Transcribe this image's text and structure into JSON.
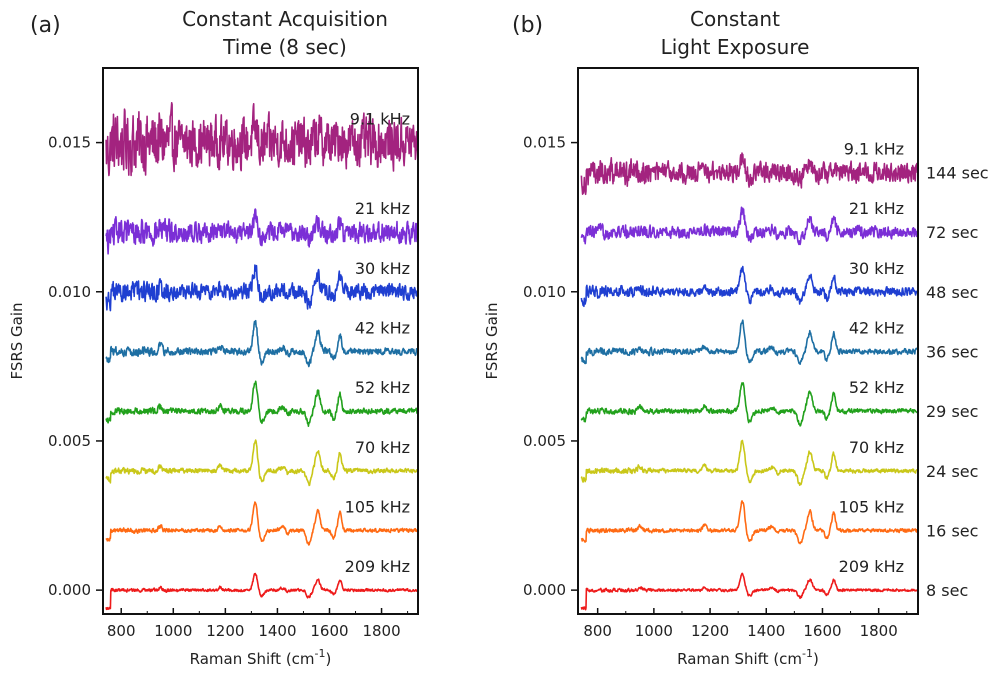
{
  "chart_data": [
    {
      "type": "line",
      "panel_label": "(a)",
      "title_lines": [
        "Constant Acquisition",
        "Time (8 sec)"
      ],
      "xlabel": "Raman Shift (cm",
      "xlabel_sup": "-1",
      "xlabel_end": ")",
      "ylabel": "FSRS Gain",
      "xlim": [
        730,
        1940
      ],
      "ylim": [
        -0.0008,
        0.0175
      ],
      "xticks": [
        800,
        1000,
        1200,
        1400,
        1600,
        1800
      ],
      "yticks": [
        0.0,
        0.005,
        0.01,
        0.015
      ],
      "ytick_labels": [
        "0.000",
        "0.005",
        "0.010",
        "0.015"
      ],
      "grid": false,
      "series": [
        {
          "name": "9.1 kHz",
          "offset": 0.015,
          "noise": 0.0011,
          "peak_scale": 0.4,
          "color": "#a3237f"
        },
        {
          "name": "21 kHz",
          "offset": 0.012,
          "noise": 0.00045,
          "peak_scale": 0.6,
          "color": "#7b2fd6"
        },
        {
          "name": "30 kHz",
          "offset": 0.01,
          "noise": 0.00035,
          "peak_scale": 0.8,
          "color": "#1f3fd1"
        },
        {
          "name": "42 kHz",
          "offset": 0.008,
          "noise": 0.00015,
          "peak_scale": 1.0,
          "color": "#1e6fa3"
        },
        {
          "name": "52 kHz",
          "offset": 0.006,
          "noise": 0.00012,
          "peak_scale": 1.0,
          "color": "#22a11c"
        },
        {
          "name": "70 kHz",
          "offset": 0.004,
          "noise": 0.0001,
          "peak_scale": 1.0,
          "color": "#c9c719"
        },
        {
          "name": "105 kHz",
          "offset": 0.002,
          "noise": 8e-05,
          "peak_scale": 1.0,
          "color": "#ff6a13"
        },
        {
          "name": "209 kHz",
          "offset": 0.0,
          "noise": 6e-05,
          "peak_scale": 0.55,
          "color": "#ee1b1b"
        }
      ]
    },
    {
      "type": "line",
      "panel_label": "(b)",
      "title_lines": [
        "Constant",
        "Light Exposure"
      ],
      "xlabel": "Raman Shift (cm",
      "xlabel_sup": "-1",
      "xlabel_end": ")",
      "ylabel": "FSRS Gain",
      "xlim": [
        730,
        1940
      ],
      "ylim": [
        -0.0008,
        0.0175
      ],
      "xticks": [
        800,
        1000,
        1200,
        1400,
        1600,
        1800
      ],
      "yticks": [
        0.0,
        0.005,
        0.01,
        0.015
      ],
      "ytick_labels": [
        "0.000",
        "0.005",
        "0.010",
        "0.015"
      ],
      "grid": false,
      "series": [
        {
          "name": "9.1 kHz",
          "time": "144 sec",
          "offset": 0.014,
          "noise": 0.00045,
          "peak_scale": 0.5,
          "color": "#a3237f"
        },
        {
          "name": "21 kHz",
          "time": "72 sec",
          "offset": 0.012,
          "noise": 0.00025,
          "peak_scale": 0.7,
          "color": "#7b2fd6"
        },
        {
          "name": "30 kHz",
          "time": "48 sec",
          "offset": 0.01,
          "noise": 0.0002,
          "peak_scale": 0.8,
          "color": "#1f3fd1"
        },
        {
          "name": "42 kHz",
          "time": "36 sec",
          "offset": 0.008,
          "noise": 0.00012,
          "peak_scale": 1.0,
          "color": "#1e6fa3"
        },
        {
          "name": "52 kHz",
          "time": "29 sec",
          "offset": 0.006,
          "noise": 0.0001,
          "peak_scale": 1.0,
          "color": "#22a11c"
        },
        {
          "name": "70 kHz",
          "time": "24 sec",
          "offset": 0.004,
          "noise": 9e-05,
          "peak_scale": 1.0,
          "color": "#c9c719"
        },
        {
          "name": "105 kHz",
          "time": "16 sec",
          "offset": 0.002,
          "noise": 8e-05,
          "peak_scale": 1.0,
          "color": "#ff6a13"
        },
        {
          "name": "209 kHz",
          "time": "8 sec",
          "offset": 0.0,
          "noise": 6e-05,
          "peak_scale": 0.55,
          "color": "#ee1b1b"
        }
      ]
    }
  ]
}
